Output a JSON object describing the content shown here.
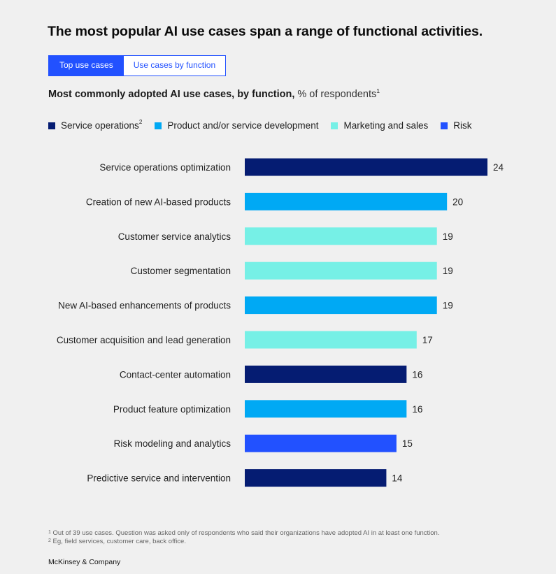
{
  "header": {
    "title": "The most popular AI use cases span a range of functional activities."
  },
  "tabs": [
    {
      "label": "Top use cases",
      "active": true
    },
    {
      "label": "Use cases by function",
      "active": false
    }
  ],
  "subtitle": {
    "bold": "Most commonly adopted AI use cases, by function,",
    "unit": " % of respondents",
    "footnote_ref": "1"
  },
  "legend": [
    {
      "label": "Service operations",
      "sup": "2",
      "color": "#051c72"
    },
    {
      "label": "Product and/or service development",
      "sup": "",
      "color": "#00a9f4"
    },
    {
      "label": "Marketing and sales",
      "sup": "",
      "color": "#76f0e6"
    },
    {
      "label": "Risk",
      "sup": "",
      "color": "#2251ff"
    }
  ],
  "chart_data": {
    "type": "bar",
    "orientation": "horizontal",
    "title": "Most commonly adopted AI use cases, by function, % of respondents",
    "xlabel": "",
    "ylabel": "",
    "xlim": [
      0,
      24
    ],
    "grid": false,
    "legend_position": "top-left",
    "categories": [
      "Service operations optimization",
      "Creation of new AI-based products",
      "Customer service analytics",
      "Customer segmentation",
      "New AI-based enhancements of products",
      "Customer acquisition and lead generation",
      "Contact-center automation",
      "Product feature optimization",
      "Risk modeling and analytics",
      "Predictive service and intervention"
    ],
    "values": [
      24,
      20,
      19,
      19,
      19,
      17,
      16,
      16,
      15,
      14
    ],
    "functions": [
      "Service operations",
      "Product and/or service development",
      "Marketing and sales",
      "Marketing and sales",
      "Product and/or service development",
      "Marketing and sales",
      "Service operations",
      "Product and/or service development",
      "Risk",
      "Service operations"
    ]
  },
  "footnotes": [
    {
      "marker": "1",
      "text": "Out of 39 use cases. Question was asked only of respondents who said their organizations have adopted AI in at least one function."
    },
    {
      "marker": "2",
      "text": "Eg, field services, customer care, back office."
    }
  ],
  "brand": "McKinsey & Company"
}
